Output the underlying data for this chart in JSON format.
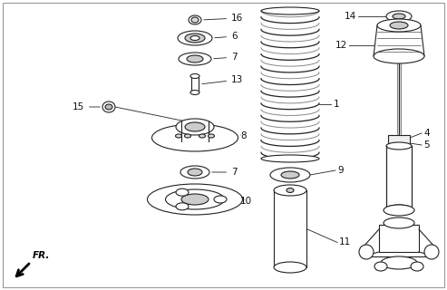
{
  "background_color": "#ffffff",
  "line_color": "#222222",
  "label_color": "#111111",
  "fig_w": 4.93,
  "fig_h": 3.2,
  "dpi": 100
}
